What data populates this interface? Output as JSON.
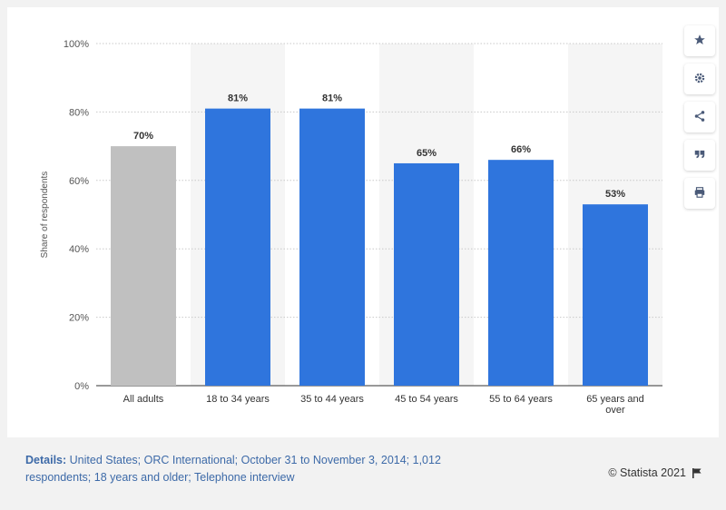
{
  "chart_data": {
    "type": "bar",
    "categories": [
      "All adults",
      "18 to 34 years",
      "35 to 44 years",
      "45 to 54 years",
      "55 to 64 years",
      "65 years and over"
    ],
    "category_lines": [
      [
        "All adults"
      ],
      [
        "18 to 34 years"
      ],
      [
        "35 to 44 years"
      ],
      [
        "45 to 54 years"
      ],
      [
        "55 to 64 years"
      ],
      [
        "65 years and",
        "over"
      ]
    ],
    "values": [
      70,
      81,
      81,
      65,
      66,
      53
    ],
    "data_labels": [
      "70%",
      "81%",
      "81%",
      "65%",
      "66%",
      "53%"
    ],
    "bar_colors": [
      "#c0c0c0",
      "#2f75dd",
      "#2f75dd",
      "#2f75dd",
      "#2f75dd",
      "#2f75dd"
    ],
    "ylabel": "Share of respondents",
    "ylim": [
      0,
      100
    ],
    "yticks": [
      0,
      20,
      40,
      60,
      80,
      100
    ],
    "ytick_labels": [
      "0%",
      "20%",
      "40%",
      "60%",
      "80%",
      "100%"
    ],
    "grid": true,
    "alternating_band_color": "#f5f5f5"
  },
  "toolbar": {
    "items": [
      {
        "name": "star-icon",
        "glyph": "★"
      },
      {
        "name": "gear-icon",
        "glyph": "⚙"
      },
      {
        "name": "share-icon",
        "glyph": "share"
      },
      {
        "name": "quote-icon",
        "glyph": "❞"
      },
      {
        "name": "print-icon",
        "glyph": "⎙"
      }
    ]
  },
  "footer": {
    "details_label": "Details:",
    "details_text": "United States; ORC International; October 31 to November 3, 2014; 1,012 respondents; 18 years and older; Telephone interview",
    "credit": "© Statista 2021"
  }
}
